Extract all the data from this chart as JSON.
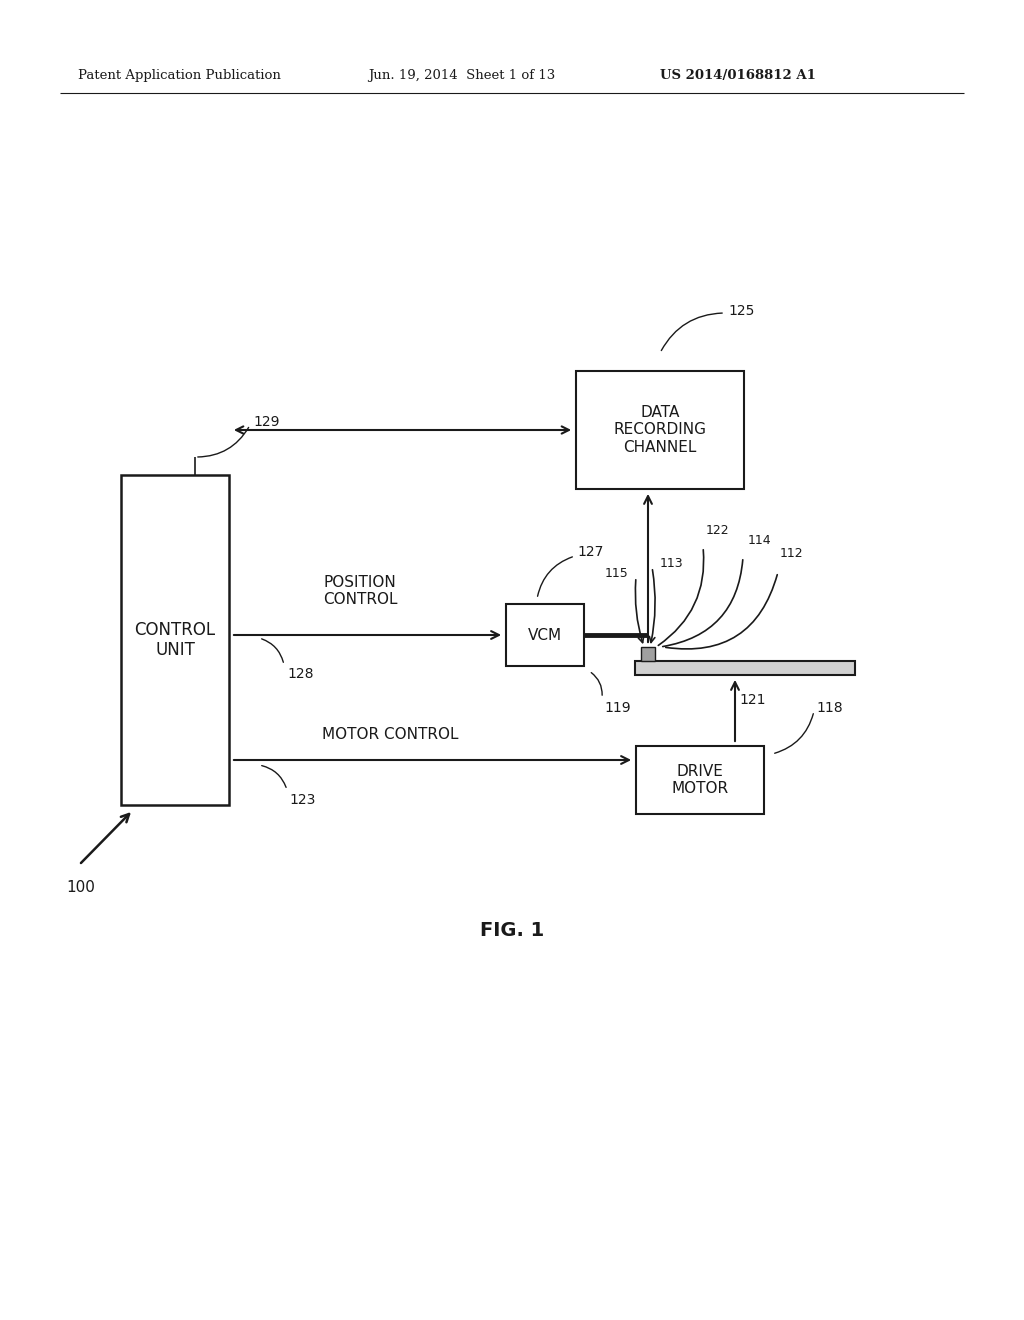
{
  "bg_color": "#ffffff",
  "line_color": "#1a1a1a",
  "header_left": "Patent Application Publication",
  "header_mid": "Jun. 19, 2014  Sheet 1 of 13",
  "header_right": "US 2014/0168812 A1",
  "fig_label": "FIG. 1",
  "control_unit_label": "CONTROL\nUNIT",
  "ref_100": "100",
  "ref_129": "129",
  "data_channel_label": "DATA\nRECORDING\nCHANNEL",
  "ref_125": "125",
  "vcm_label": "VCM",
  "ref_127": "127",
  "position_control_label": "POSITION\nCONTROL",
  "ref_128": "128",
  "motor_control_label": "MOTOR CONTROL",
  "ref_123": "123",
  "drive_motor_label": "DRIVE\nMOTOR",
  "ref_118": "118",
  "ref_113": "113",
  "ref_115": "115",
  "ref_122": "122",
  "ref_114": "114",
  "ref_112": "112",
  "ref_119": "119",
  "ref_121": "121"
}
